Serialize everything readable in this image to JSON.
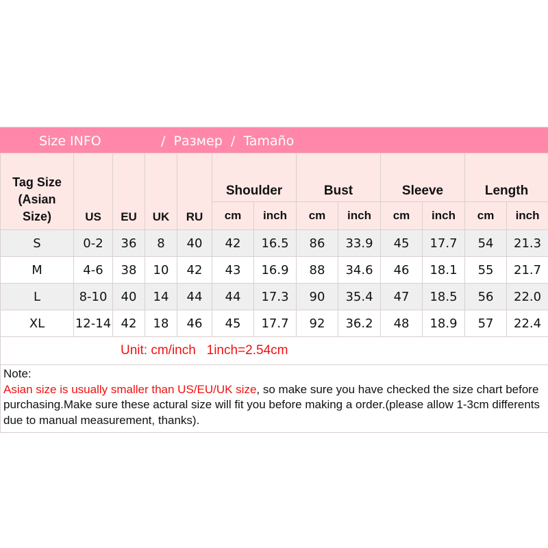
{
  "title": {
    "part1": "Size INFO",
    "part2": "/  Размер  /  Tamaño"
  },
  "headers": {
    "tag": [
      "Tag Size",
      "(Asian",
      "Size)"
    ],
    "us": "US",
    "eu": "EU",
    "uk": "UK",
    "ru": "RU",
    "groups": [
      "Shoulder",
      "Bust",
      "Sleeve",
      "Length"
    ],
    "cm": "cm",
    "inch": "inch"
  },
  "rows": [
    [
      "S",
      "0-2",
      "36",
      "8",
      "40",
      "42",
      "16.5",
      "86",
      "33.9",
      "45",
      "17.7",
      "54",
      "21.3"
    ],
    [
      "M",
      "4-6",
      "38",
      "10",
      "42",
      "43",
      "16.9",
      "88",
      "34.6",
      "46",
      "18.1",
      "55",
      "21.7"
    ],
    [
      "L",
      "8-10",
      "40",
      "14",
      "44",
      "44",
      "17.3",
      "90",
      "35.4",
      "47",
      "18.5",
      "56",
      "22.0"
    ],
    [
      "XL",
      "12-14",
      "42",
      "18",
      "46",
      "45",
      "17.7",
      "92",
      "36.2",
      "48",
      "18.9",
      "57",
      "22.4"
    ]
  ],
  "unit": "Unit: cm/inch   1inch=2.54cm",
  "note": {
    "label": "Note:",
    "red": "Asian size is usually smaller than US/EU/UK size",
    "rest": ", so make sure you have checked the size chart before purchasing.Make sure these actural size will fit you before making a order.(please allow 1-3cm differents due to manual measurement, thanks)."
  }
}
